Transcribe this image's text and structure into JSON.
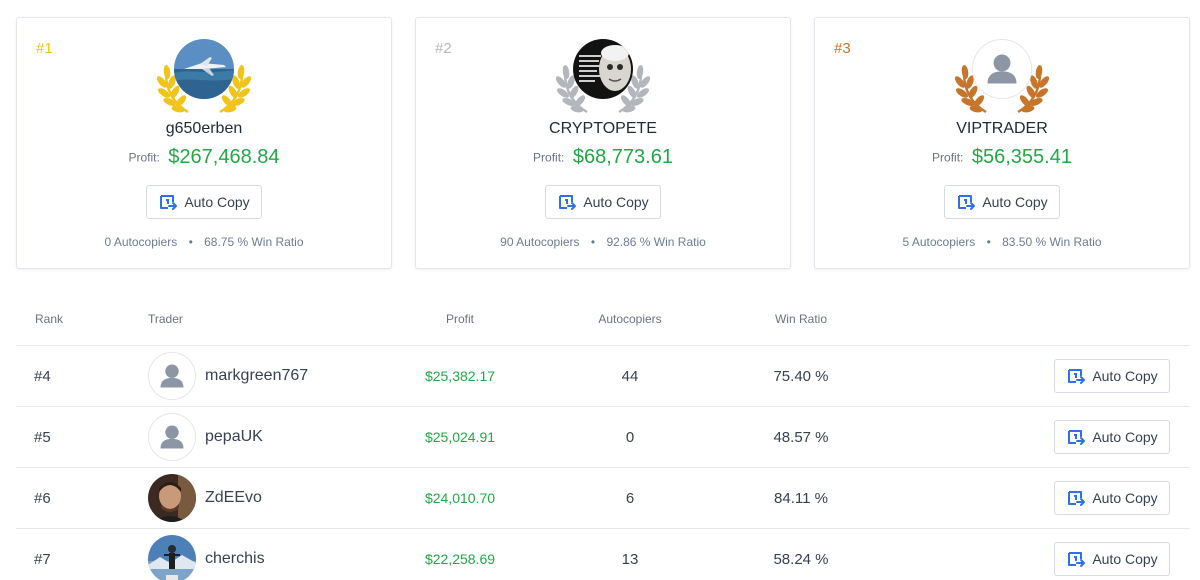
{
  "colors": {
    "accent_green": "#22a845",
    "gold": "#f2c318",
    "silver": "#b3b7bd",
    "bronze": "#c8752c",
    "copy_icon": "#2f6fed"
  },
  "podium": [
    {
      "rank": "#1",
      "name": "g650erben",
      "profit_label": "Profit:",
      "profit": "$267,468.84",
      "button": "Auto Copy",
      "autocopiers": "0 Autocopiers",
      "win_ratio": "68.75 % Win Ratio",
      "avatar": "jet-photo",
      "wreath": "gold-laurel-icon"
    },
    {
      "rank": "#2",
      "name": "CRYPTOPETE",
      "profit_label": "Profit:",
      "profit": "$68,773.61",
      "button": "Auto Copy",
      "autocopiers": "90 Autocopiers",
      "win_ratio": "92.86 % Win Ratio",
      "avatar": "quote-photo",
      "wreath": "silver-laurel-icon"
    },
    {
      "rank": "#3",
      "name": "VIPTRADER",
      "profit_label": "Profit:",
      "profit": "$56,355.41",
      "button": "Auto Copy",
      "autocopiers": "5 Autocopiers",
      "win_ratio": "83.50 % Win Ratio",
      "avatar": "default-user-icon",
      "wreath": "bronze-laurel-icon"
    }
  ],
  "table": {
    "headers": {
      "rank": "Rank",
      "trader": "Trader",
      "profit": "Profit",
      "autocopiers": "Autocopiers",
      "win_ratio": "Win Ratio"
    },
    "rows": [
      {
        "rank": "#4",
        "name": "markgreen767",
        "profit": "$25,382.17",
        "autocopiers": "44",
        "win_ratio": "75.40 %",
        "button": "Auto Copy",
        "avatar": "default-user-icon"
      },
      {
        "rank": "#5",
        "name": "pepaUK",
        "profit": "$25,024.91",
        "autocopiers": "0",
        "win_ratio": "48.57 %",
        "button": "Auto Copy",
        "avatar": "default-user-icon"
      },
      {
        "rank": "#6",
        "name": "ZdEEvo",
        "profit": "$24,010.70",
        "autocopiers": "6",
        "win_ratio": "84.11 %",
        "button": "Auto Copy",
        "avatar": "person-photo"
      },
      {
        "rank": "#7",
        "name": "cherchis",
        "profit": "$22,258.69",
        "autocopiers": "13",
        "win_ratio": "58.24 %",
        "button": "Auto Copy",
        "avatar": "landscape-photo"
      }
    ]
  }
}
